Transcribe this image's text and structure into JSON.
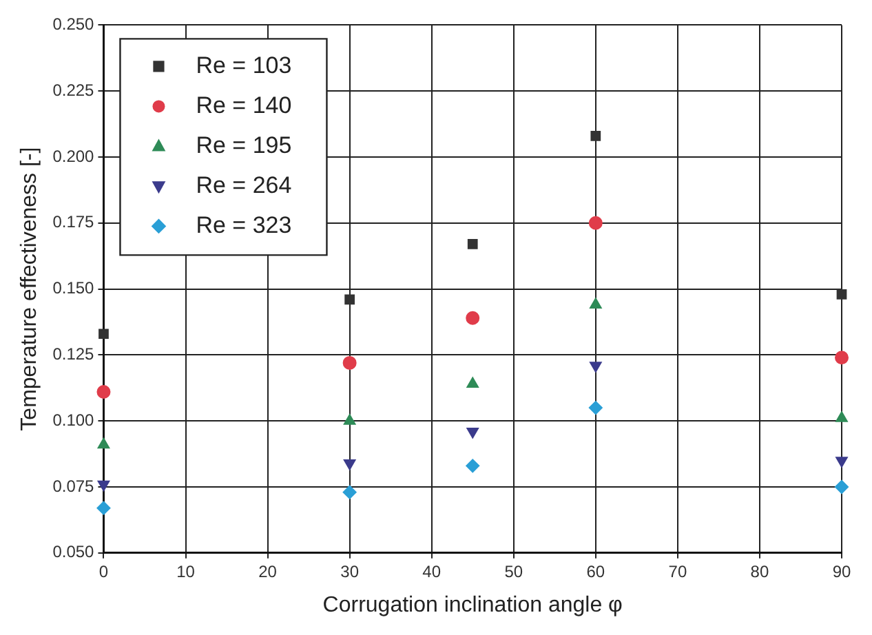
{
  "chart_data": {
    "type": "scatter",
    "xlabel": "Corrugation inclination angle φ",
    "ylabel": "Temperature effectiveness [-]",
    "x": [
      0,
      30,
      45,
      60,
      90
    ],
    "series": [
      {
        "name": "Re = 103",
        "color": "#333333",
        "marker": "square",
        "values": [
          0.133,
          0.146,
          0.167,
          0.208,
          0.148
        ]
      },
      {
        "name": "Re = 140",
        "color": "#e03c4a",
        "marker": "circle",
        "values": [
          0.111,
          0.122,
          0.139,
          0.175,
          0.124
        ]
      },
      {
        "name": "Re = 195",
        "color": "#2e8b57",
        "marker": "triangle",
        "values": [
          0.091,
          0.1,
          0.114,
          0.144,
          0.101
        ]
      },
      {
        "name": "Re = 264",
        "color": "#3b3b8c",
        "marker": "triangle-down",
        "values": [
          0.076,
          0.084,
          0.096,
          0.121,
          0.085
        ]
      },
      {
        "name": "Re = 323",
        "color": "#2a9fd6",
        "marker": "diamond",
        "values": [
          0.067,
          0.073,
          0.083,
          0.105,
          0.075
        ]
      }
    ],
    "xlim": [
      0,
      90
    ],
    "xticks": [
      0,
      10,
      20,
      30,
      40,
      50,
      60,
      70,
      80,
      90
    ],
    "ylim": [
      0.05,
      0.25
    ],
    "yticks": [
      {
        "value": 0.05,
        "label": "0.050"
      },
      0.075,
      {
        "value": 0.1,
        "label": "0.100"
      },
      0.125,
      {
        "value": 0.15,
        "label": "0.150"
      },
      0.175,
      {
        "value": 0.2,
        "label": "0.200"
      },
      0.225,
      {
        "value": 0.25,
        "label": "0.250"
      }
    ],
    "grid": true,
    "legend": "top left"
  }
}
